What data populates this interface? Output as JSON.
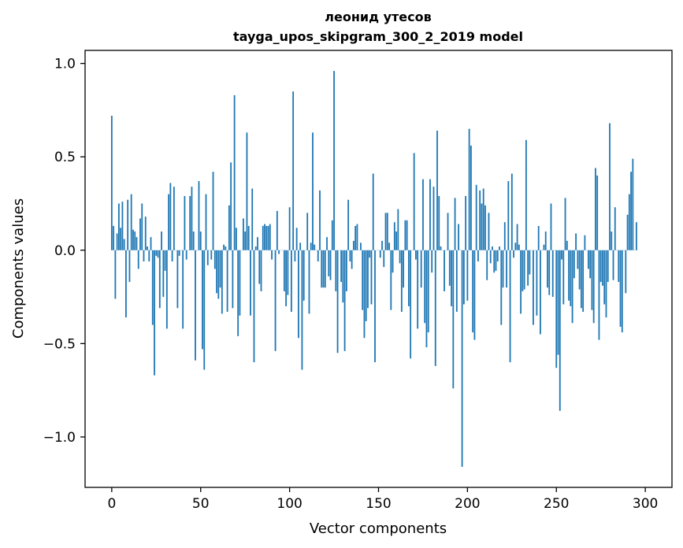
{
  "chart_data": {
    "type": "bar",
    "title": "леонид утесов",
    "subtitle": "tayga_upos_skipgram_300_2_2019 model",
    "xlabel": "Vector components",
    "ylabel": "Components values",
    "xlim": [
      -15,
      315
    ],
    "ylim": [
      -1.27,
      1.07
    ],
    "xticks": [
      0,
      50,
      100,
      150,
      200,
      250,
      300
    ],
    "xtick_labels": [
      "0",
      "50",
      "100",
      "150",
      "200",
      "250",
      "300"
    ],
    "yticks": [
      1.0,
      0.5,
      0.0,
      -0.5,
      -1.0
    ],
    "ytick_labels": [
      "1.0",
      "0.5",
      "0.0",
      "−0.5",
      "−1.0"
    ],
    "bar_color": "#1f77b4",
    "values": [
      0.72,
      0.13,
      -0.26,
      0.09,
      0.25,
      0.12,
      0.26,
      0.06,
      -0.36,
      0.27,
      -0.17,
      0.3,
      0.11,
      0.1,
      0.07,
      -0.1,
      0.17,
      0.25,
      -0.06,
      0.18,
      0.02,
      -0.06,
      0.07,
      -0.4,
      -0.67,
      -0.03,
      -0.04,
      -0.31,
      0.1,
      -0.25,
      -0.11,
      -0.42,
      0.3,
      0.36,
      -0.06,
      0.34,
      0.0,
      -0.31,
      -0.03,
      0.0,
      -0.42,
      0.29,
      -0.05,
      0.0,
      0.29,
      0.34,
      0.1,
      -0.59,
      0.0,
      0.37,
      0.1,
      -0.53,
      -0.64,
      0.3,
      -0.08,
      0.0,
      -0.05,
      0.42,
      -0.1,
      -0.23,
      -0.26,
      -0.2,
      -0.34,
      0.03,
      0.02,
      -0.33,
      0.24,
      0.47,
      -0.31,
      0.83,
      0.12,
      -0.46,
      -0.35,
      0.0,
      0.17,
      0.1,
      0.63,
      0.13,
      -0.35,
      0.33,
      -0.6,
      0.02,
      0.07,
      -0.18,
      -0.22,
      0.13,
      0.14,
      0.13,
      0.13,
      0.14,
      -0.05,
      0.0,
      -0.54,
      0.21,
      -0.02,
      0.0,
      0.0,
      -0.22,
      -0.3,
      -0.24,
      0.23,
      -0.33,
      0.85,
      -0.06,
      0.12,
      -0.47,
      0.04,
      -0.64,
      -0.27,
      0.0,
      0.2,
      -0.34,
      0.04,
      0.63,
      0.03,
      0.0,
      -0.06,
      0.32,
      -0.2,
      -0.2,
      -0.2,
      0.07,
      -0.14,
      -0.16,
      0.16,
      0.96,
      -0.22,
      -0.55,
      0.0,
      -0.17,
      -0.28,
      -0.54,
      -0.22,
      0.27,
      -0.06,
      -0.1,
      0.05,
      0.13,
      0.14,
      0.0,
      0.04,
      -0.32,
      -0.47,
      -0.38,
      -0.31,
      -0.04,
      -0.29,
      0.41,
      -0.6,
      0.0,
      0.0,
      -0.04,
      0.05,
      -0.09,
      0.2,
      0.2,
      0.04,
      -0.32,
      -0.12,
      0.15,
      0.1,
      0.22,
      -0.07,
      -0.33,
      -0.2,
      0.16,
      0.16,
      -0.3,
      -0.58,
      0.0,
      0.52,
      -0.05,
      -0.42,
      0.0,
      -0.2,
      0.38,
      -0.39,
      -0.52,
      -0.44,
      0.38,
      -0.12,
      0.34,
      -0.62,
      0.64,
      0.29,
      0.02,
      0.0,
      -0.22,
      0.0,
      0.2,
      -0.19,
      -0.3,
      -0.74,
      0.28,
      -0.33,
      0.14,
      0.0,
      -1.16,
      -0.29,
      0.29,
      -0.27,
      0.65,
      0.56,
      -0.44,
      -0.48,
      0.35,
      -0.06,
      0.32,
      0.25,
      0.33,
      0.24,
      -0.16,
      0.2,
      -0.07,
      0.02,
      -0.12,
      -0.11,
      -0.06,
      0.02,
      -0.4,
      -0.2,
      0.15,
      -0.2,
      0.37,
      -0.6,
      0.41,
      -0.04,
      0.04,
      0.14,
      0.03,
      -0.34,
      -0.22,
      -0.21,
      0.59,
      -0.19,
      -0.13,
      0.0,
      -0.4,
      0.0,
      -0.35,
      0.13,
      -0.45,
      0.0,
      0.03,
      0.1,
      -0.2,
      -0.24,
      0.25,
      -0.25,
      0.0,
      -0.63,
      -0.56,
      -0.86,
      -0.05,
      -0.29,
      0.28,
      0.05,
      -0.27,
      -0.3,
      -0.39,
      -0.15,
      0.09,
      -0.1,
      -0.21,
      -0.31,
      -0.33,
      0.08,
      0.0,
      -0.1,
      -0.15,
      -0.32,
      -0.39,
      0.44,
      0.4,
      -0.48,
      -0.17,
      -0.19,
      -0.29,
      -0.36,
      -0.17,
      0.68,
      0.1,
      -0.16,
      0.23,
      0.0,
      -0.17,
      -0.41,
      -0.44,
      0.0,
      -0.23,
      0.19,
      0.3,
      0.42,
      0.49,
      0.0,
      0.15
    ]
  }
}
